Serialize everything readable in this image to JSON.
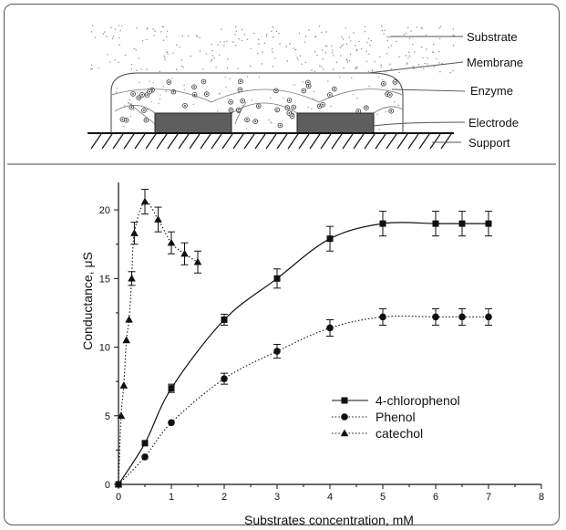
{
  "diagram": {
    "labels": [
      "Substrate",
      "Membrane",
      "Enzyme",
      "Electrode",
      "Support"
    ]
  },
  "chart_data": {
    "type": "line",
    "xlabel": "Substrates concentration, mM",
    "ylabel": "Conductance, μS",
    "xlim": [
      0,
      8
    ],
    "ylim": [
      0,
      22
    ],
    "xticks": [
      "0",
      "1",
      "2",
      "3",
      "4",
      "5",
      "6",
      "7",
      "8"
    ],
    "yticks": [
      "0",
      "5",
      "10",
      "15",
      "20"
    ],
    "legend_position": "lower-right",
    "series": [
      {
        "name": "4-chlorophenol",
        "marker": "square",
        "line": "solid",
        "x": [
          0,
          0.5,
          1,
          2,
          3,
          4,
          5,
          6,
          6.5,
          7
        ],
        "y": [
          0,
          3,
          7,
          12,
          15,
          17.9,
          19,
          19,
          19,
          19
        ],
        "err": [
          0,
          0,
          0.3,
          0.4,
          0.7,
          0.9,
          0.9,
          0.9,
          0.9,
          0.9
        ]
      },
      {
        "name": "Phenol",
        "marker": "circle",
        "line": "dotted",
        "x": [
          0,
          0.5,
          1,
          2,
          3,
          4,
          5,
          6,
          6.5,
          7
        ],
        "y": [
          0,
          2,
          4.5,
          7.7,
          9.7,
          11.4,
          12.2,
          12.2,
          12.2,
          12.2
        ],
        "err": [
          0,
          0,
          0,
          0.4,
          0.5,
          0.6,
          0.6,
          0.6,
          0.6,
          0.6
        ]
      },
      {
        "name": "catechol",
        "marker": "triangle",
        "line": "dotted",
        "x": [
          0,
          0.05,
          0.1,
          0.15,
          0.2,
          0.25,
          0.3,
          0.5,
          0.75,
          1,
          1.25,
          1.5
        ],
        "y": [
          0,
          5,
          7.2,
          10.5,
          12,
          15,
          18.3,
          20.6,
          19.3,
          17.6,
          16.8,
          16.2
        ],
        "err": [
          0,
          0,
          0,
          0,
          0,
          0.5,
          0.8,
          0.9,
          0.9,
          0.8,
          0.8,
          0.8
        ]
      }
    ]
  }
}
